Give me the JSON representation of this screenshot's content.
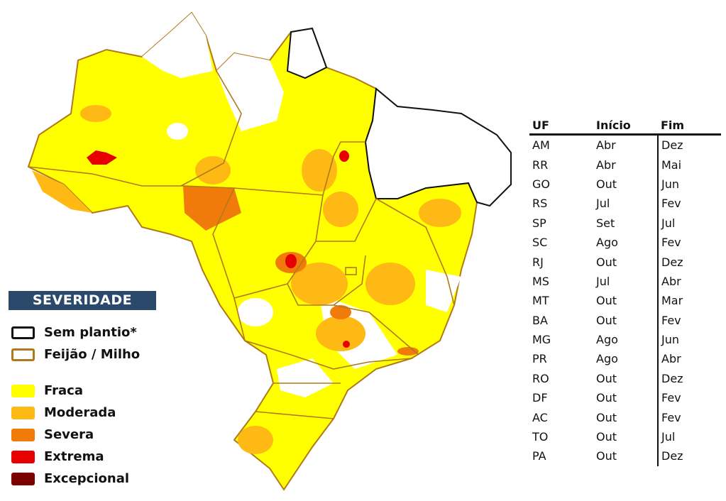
{
  "legend": {
    "title": "SEVERIDADE",
    "items": [
      {
        "label": "Sem plantio*",
        "type": "outline",
        "color": "#111111"
      },
      {
        "label": "Feijão / Milho",
        "type": "outline",
        "color": "#b07a1a"
      },
      {
        "label": "Fraca",
        "type": "fill",
        "color": "#ffff00"
      },
      {
        "label": "Moderada",
        "type": "fill",
        "color": "#ffb914"
      },
      {
        "label": "Severa",
        "type": "fill",
        "color": "#f07a0a"
      },
      {
        "label": "Extrema",
        "type": "fill",
        "color": "#e60000"
      },
      {
        "label": "Excepcional",
        "type": "fill",
        "color": "#7a0000"
      }
    ]
  },
  "table": {
    "headers": [
      "UF",
      "Início",
      "Fim"
    ],
    "rows": [
      [
        "AM",
        "Abr",
        "Dez"
      ],
      [
        "RR",
        "Abr",
        "Mai"
      ],
      [
        "GO",
        "Out",
        "Jun"
      ],
      [
        "RS",
        "Jul",
        "Fev"
      ],
      [
        "SP",
        "Set",
        "Jul"
      ],
      [
        "SC",
        "Ago",
        "Fev"
      ],
      [
        "RJ",
        "Out",
        "Dez"
      ],
      [
        "MS",
        "Jul",
        "Abr"
      ],
      [
        "MT",
        "Out",
        "Mar"
      ],
      [
        "BA",
        "Out",
        "Fev"
      ],
      [
        "MG",
        "Ago",
        "Jun"
      ],
      [
        "PR",
        "Ago",
        "Abr"
      ],
      [
        "RO",
        "Out",
        "Dez"
      ],
      [
        "DF",
        "Out",
        "Fev"
      ],
      [
        "AC",
        "Out",
        "Fev"
      ],
      [
        "TO",
        "Out",
        "Jul"
      ],
      [
        "PA",
        "Out",
        "Dez"
      ]
    ]
  }
}
